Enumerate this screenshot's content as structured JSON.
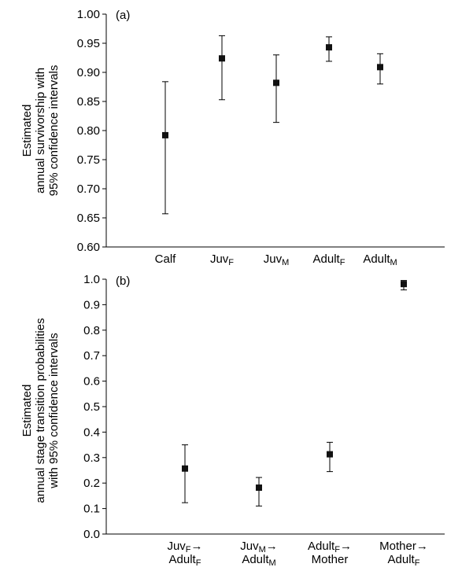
{
  "chart_data": [
    {
      "type": "scatter",
      "panel_label": "(a)",
      "ylabel_lines": [
        "Estimated",
        "annual survivorship with",
        "95% confidence intervals"
      ],
      "categories": [
        {
          "base": "Calf",
          "sub": ""
        },
        {
          "base": "Juv",
          "sub": "F"
        },
        {
          "base": "Juv",
          "sub": "M"
        },
        {
          "base": "Adult",
          "sub": "F"
        },
        {
          "base": "Adult",
          "sub": "M"
        }
      ],
      "estimates": [
        0.792,
        0.924,
        0.882,
        0.943,
        0.909
      ],
      "ci_lower": [
        0.657,
        0.853,
        0.814,
        0.919,
        0.88
      ],
      "ci_upper": [
        0.884,
        0.963,
        0.93,
        0.961,
        0.932
      ],
      "ylim": [
        0.6,
        1.0
      ],
      "yticks": [
        "0.60",
        "0.65",
        "0.70",
        "0.75",
        "0.80",
        "0.85",
        "0.90",
        "0.95",
        "1.00"
      ],
      "grid": false
    },
    {
      "type": "scatter",
      "panel_label": "(b)",
      "ylabel_lines": [
        "Estimated",
        "annual stage transition probabilities",
        "with 95% confidence intervals"
      ],
      "categories": [
        {
          "l1_base": "Juv",
          "l1_sub": "F",
          "l1_tail": "→",
          "l2_base": "Adult",
          "l2_sub": "F"
        },
        {
          "l1_base": "Juv",
          "l1_sub": "M",
          "l1_tail": "→",
          "l2_base": "Adult",
          "l2_sub": "M"
        },
        {
          "l1_base": "Adult",
          "l1_sub": "F",
          "l1_tail": "→",
          "l2_base": "Mother",
          "l2_sub": ""
        },
        {
          "l1_base": "Mother",
          "l1_sub": "",
          "l1_tail": "→",
          "l2_base": "Adult",
          "l2_sub": "F"
        }
      ],
      "estimates": [
        0.257,
        0.182,
        0.313,
        0.981
      ],
      "ci_lower": [
        0.123,
        0.11,
        0.245,
        0.958
      ],
      "ci_upper": [
        0.35,
        0.222,
        0.36,
        0.995
      ],
      "ylim": [
        0.0,
        1.0
      ],
      "yticks": [
        "0.0",
        "0.1",
        "0.2",
        "0.3",
        "0.4",
        "0.5",
        "0.6",
        "0.7",
        "0.8",
        "0.9",
        "1.0"
      ],
      "grid": false
    }
  ]
}
